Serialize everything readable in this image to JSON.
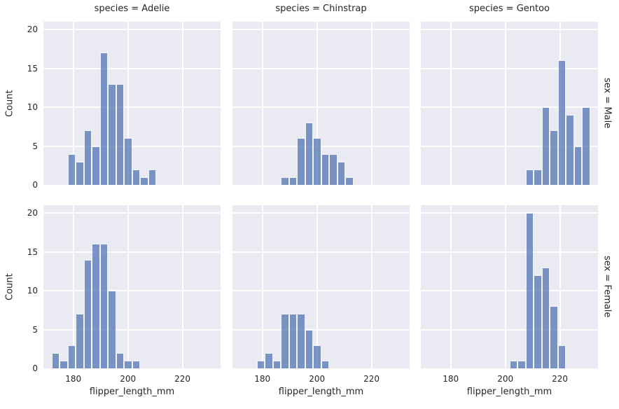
{
  "chart_data": {
    "type": "bar",
    "subtype": "faceted-histogram",
    "facet_col_variable": "species",
    "facet_row_variable": "sex",
    "col_titles": [
      "species = Adelie",
      "species = Chinstrap",
      "species = Gentoo"
    ],
    "row_labels": [
      "sex = Male",
      "sex = Female"
    ],
    "xlabel": "flipper_length_mm",
    "ylabel": "Count",
    "x_ticks": [
      180,
      200,
      220
    ],
    "y_ticks": [
      0,
      5,
      10,
      15,
      20
    ],
    "xlim": [
      169.05,
      233.95
    ],
    "ylim": [
      0,
      21
    ],
    "grid": true,
    "bin_origin_mm": 172.0,
    "bin_width_mm": 2.95,
    "facets": [
      {
        "species": "Adelie",
        "sex": "Male",
        "start_bin": 2,
        "counts": [
          4,
          3,
          7,
          5,
          17,
          13,
          13,
          6,
          2,
          1,
          2
        ]
      },
      {
        "species": "Chinstrap",
        "sex": "Male",
        "start_bin": 5,
        "counts": [
          1,
          1,
          6,
          8,
          6,
          4,
          4,
          3,
          1
        ]
      },
      {
        "species": "Gentoo",
        "sex": "Male",
        "start_bin": 12,
        "counts": [
          2,
          2,
          10,
          7,
          16,
          9,
          5,
          10
        ]
      },
      {
        "species": "Adelie",
        "sex": "Female",
        "start_bin": 0,
        "counts": [
          2,
          1,
          3,
          7,
          14,
          16,
          16,
          10,
          2,
          1,
          1
        ]
      },
      {
        "species": "Chinstrap",
        "sex": "Female",
        "start_bin": 2,
        "counts": [
          1,
          2,
          1,
          7,
          7,
          7,
          5,
          3,
          1
        ]
      },
      {
        "species": "Gentoo",
        "sex": "Female",
        "start_bin": 10,
        "counts": [
          1,
          1,
          20,
          12,
          13,
          8,
          3
        ]
      }
    ],
    "colors": {
      "bar": "#4c72b0",
      "bar_alpha": 0.72,
      "plot_background": "#eaeaf2",
      "gridline": "#ffffff",
      "text": "#262626",
      "figure_background": "#ffffff"
    }
  }
}
